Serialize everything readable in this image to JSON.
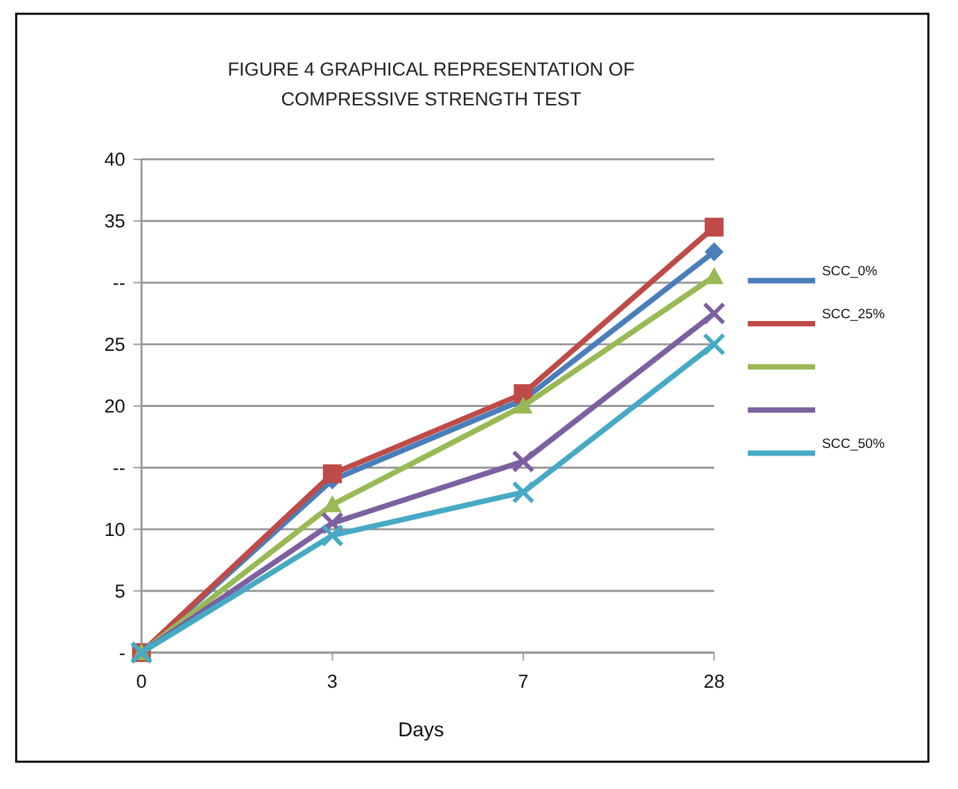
{
  "chart_data": {
    "type": "line",
    "title": "FIGURE 4 GRAPHICAL REPRESENTATION OF COMPRESSIVE STRENGTH TEST",
    "xlabel": "Days",
    "categories": [
      "0",
      "3",
      "7",
      "28"
    ],
    "series": [
      {
        "name": "SCC_0%",
        "color": "#4a7ebb",
        "marker": "diamond",
        "values": [
          0,
          14,
          20.5,
          32.5
        ]
      },
      {
        "name": "SCC_25%",
        "color": "#be4b48",
        "marker": "square",
        "values": [
          0,
          14.5,
          21,
          34.5
        ]
      },
      {
        "color": "#98b954",
        "marker": "triangle",
        "values": [
          0,
          12,
          20,
          30.5
        ]
      },
      {
        "color": "#7d60a0",
        "marker": "cross",
        "values": [
          0,
          10.5,
          15.5,
          27.5
        ]
      },
      {
        "name": "SCC_50%",
        "color": "#46aac5",
        "marker": "cross",
        "values": [
          0,
          9.5,
          13,
          25
        ]
      }
    ],
    "ylim": [
      0,
      40
    ],
    "yticks": [
      {
        "value": 0,
        "label": "-"
      },
      5,
      10,
      {
        "value": 15,
        "label": "--"
      },
      20,
      25,
      {
        "value": 30,
        "label": "--"
      },
      35,
      40
    ],
    "grid": "y",
    "legend": "right",
    "line_style": "solid"
  }
}
